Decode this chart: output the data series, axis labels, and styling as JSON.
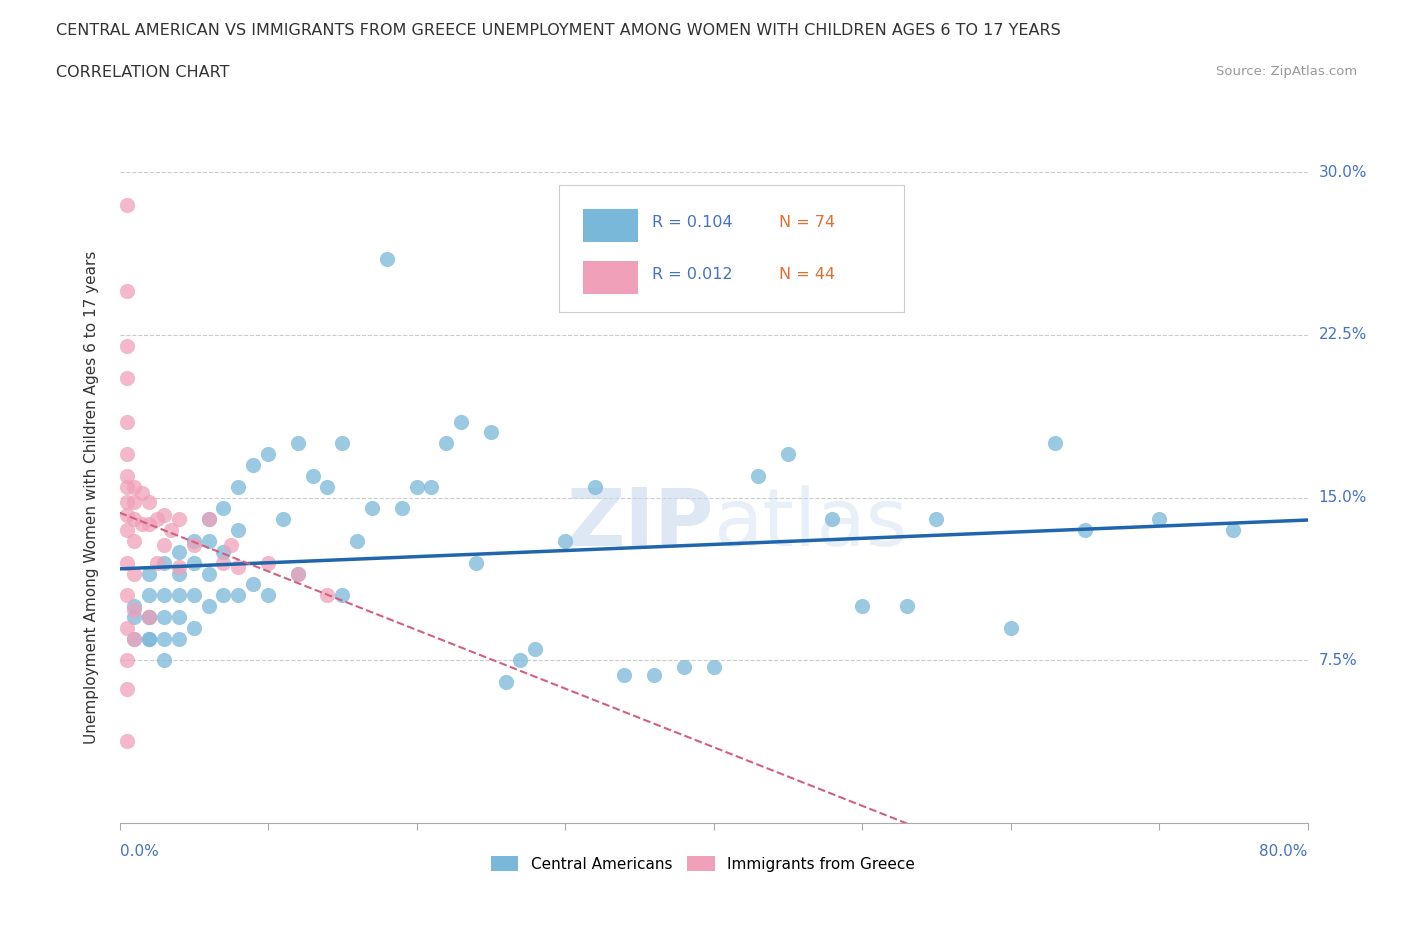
{
  "title_line1": "CENTRAL AMERICAN VS IMMIGRANTS FROM GREECE UNEMPLOYMENT AMONG WOMEN WITH CHILDREN AGES 6 TO 17 YEARS",
  "title_line2": "CORRELATION CHART",
  "source_text": "Source: ZipAtlas.com",
  "xlabel_bottom_left": "0.0%",
  "xlabel_bottom_right": "80.0%",
  "ylabel": "Unemployment Among Women with Children Ages 6 to 17 years",
  "xmin": 0.0,
  "xmax": 0.8,
  "ymin": 0.0,
  "ymax": 0.3,
  "yticks": [
    0.0,
    0.075,
    0.15,
    0.225,
    0.3
  ],
  "ytick_labels": [
    "",
    "7.5%",
    "15.0%",
    "22.5%",
    "30.0%"
  ],
  "watermark": "ZIPatlas",
  "blue_color": "#7ab8d9",
  "pink_color": "#f0a0b8",
  "legend_blue_r": "R = 0.104",
  "legend_blue_n": "N = 74",
  "legend_pink_r": "R = 0.012",
  "legend_pink_n": "N = 44",
  "blue_scatter_x": [
    0.01,
    0.01,
    0.01,
    0.02,
    0.02,
    0.02,
    0.02,
    0.02,
    0.02,
    0.03,
    0.03,
    0.03,
    0.03,
    0.03,
    0.04,
    0.04,
    0.04,
    0.04,
    0.04,
    0.05,
    0.05,
    0.05,
    0.05,
    0.06,
    0.06,
    0.06,
    0.06,
    0.07,
    0.07,
    0.07,
    0.08,
    0.08,
    0.08,
    0.09,
    0.09,
    0.1,
    0.1,
    0.11,
    0.12,
    0.12,
    0.13,
    0.14,
    0.15,
    0.15,
    0.16,
    0.17,
    0.18,
    0.19,
    0.2,
    0.21,
    0.22,
    0.23,
    0.24,
    0.25,
    0.26,
    0.27,
    0.28,
    0.3,
    0.32,
    0.34,
    0.36,
    0.38,
    0.4,
    0.43,
    0.45,
    0.48,
    0.5,
    0.53,
    0.55,
    0.6,
    0.63,
    0.65,
    0.7,
    0.75
  ],
  "blue_scatter_y": [
    0.1,
    0.095,
    0.085,
    0.115,
    0.105,
    0.095,
    0.085,
    0.095,
    0.085,
    0.12,
    0.105,
    0.095,
    0.085,
    0.075,
    0.125,
    0.115,
    0.105,
    0.095,
    0.085,
    0.13,
    0.12,
    0.105,
    0.09,
    0.14,
    0.13,
    0.115,
    0.1,
    0.145,
    0.125,
    0.105,
    0.155,
    0.135,
    0.105,
    0.165,
    0.11,
    0.17,
    0.105,
    0.14,
    0.175,
    0.115,
    0.16,
    0.155,
    0.175,
    0.105,
    0.13,
    0.145,
    0.26,
    0.145,
    0.155,
    0.155,
    0.175,
    0.185,
    0.12,
    0.18,
    0.065,
    0.075,
    0.08,
    0.13,
    0.155,
    0.068,
    0.068,
    0.072,
    0.072,
    0.16,
    0.17,
    0.14,
    0.1,
    0.1,
    0.14,
    0.09,
    0.175,
    0.135,
    0.14,
    0.135
  ],
  "pink_scatter_x": [
    0.005,
    0.005,
    0.005,
    0.005,
    0.005,
    0.005,
    0.005,
    0.005,
    0.005,
    0.005,
    0.005,
    0.005,
    0.005,
    0.005,
    0.005,
    0.005,
    0.005,
    0.01,
    0.01,
    0.01,
    0.01,
    0.01,
    0.01,
    0.01,
    0.015,
    0.015,
    0.02,
    0.02,
    0.02,
    0.025,
    0.025,
    0.03,
    0.03,
    0.035,
    0.04,
    0.04,
    0.05,
    0.06,
    0.07,
    0.075,
    0.08,
    0.1,
    0.12,
    0.14
  ],
  "pink_scatter_y": [
    0.285,
    0.245,
    0.22,
    0.205,
    0.185,
    0.17,
    0.16,
    0.155,
    0.148,
    0.142,
    0.135,
    0.12,
    0.105,
    0.09,
    0.075,
    0.062,
    0.038,
    0.155,
    0.148,
    0.14,
    0.13,
    0.115,
    0.098,
    0.085,
    0.152,
    0.138,
    0.148,
    0.138,
    0.095,
    0.14,
    0.12,
    0.142,
    0.128,
    0.135,
    0.14,
    0.118,
    0.128,
    0.14,
    0.12,
    0.128,
    0.118,
    0.12,
    0.115,
    0.105
  ]
}
